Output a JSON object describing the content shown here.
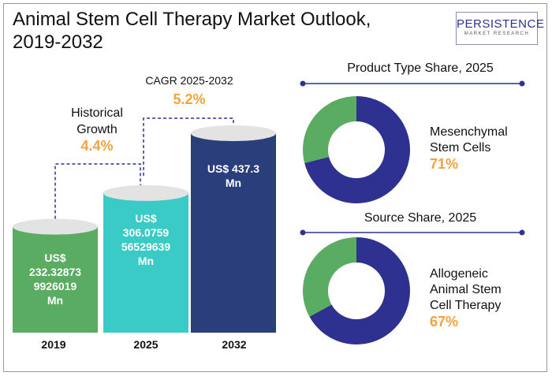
{
  "header": {
    "title_line1": "Animal Stem Cell Therapy Market Outlook,",
    "title_line2": "2019-2032",
    "logo_main": "PERSISTENCE",
    "logo_sub": "MARKET RESEARCH"
  },
  "annotations": {
    "historical_label_line1": "Historical",
    "historical_label_line2": "Growth",
    "historical_value": "4.4%",
    "cagr_label": "CAGR 2025-2032",
    "cagr_value": "5.2%"
  },
  "colors": {
    "bar_2019": "#5aac63",
    "bar_2025": "#3bcbc6",
    "bar_2032": "#2a3e7c",
    "donut_primary": "#2e3190",
    "donut_secondary": "#5aac63",
    "accent": "#f3a33d"
  },
  "chart_data": [
    {
      "type": "bar",
      "title": "",
      "categories": [
        "2019",
        "2025",
        "2032"
      ],
      "values": [
        232.328739926019,
        306.075956529639,
        437.3
      ],
      "value_labels": [
        [
          "US$",
          "232.32873",
          "9926019",
          "Mn"
        ],
        [
          "US$",
          "306.0759",
          "56529639",
          "Mn"
        ],
        [
          "US$ 437.3",
          "Mn"
        ]
      ],
      "unit": "US$ Mn"
    },
    {
      "type": "pie",
      "title": "Product Type Share, 2025",
      "segments": [
        {
          "label": "Mesenchymal Stem Cells",
          "value": 71
        },
        {
          "label": "",
          "value": 29
        }
      ],
      "label_lines": [
        "Mesenchymal",
        "Stem Cells"
      ],
      "value_text": "71%"
    },
    {
      "type": "pie",
      "title": "Source Share, 2025",
      "segments": [
        {
          "label": "Allogeneic Animal Stem Cell Therapy",
          "value": 67
        },
        {
          "label": "",
          "value": 33
        }
      ],
      "label_lines": [
        "Allogeneic",
        "Animal Stem",
        "Cell Therapy"
      ],
      "value_text": "67%"
    }
  ]
}
